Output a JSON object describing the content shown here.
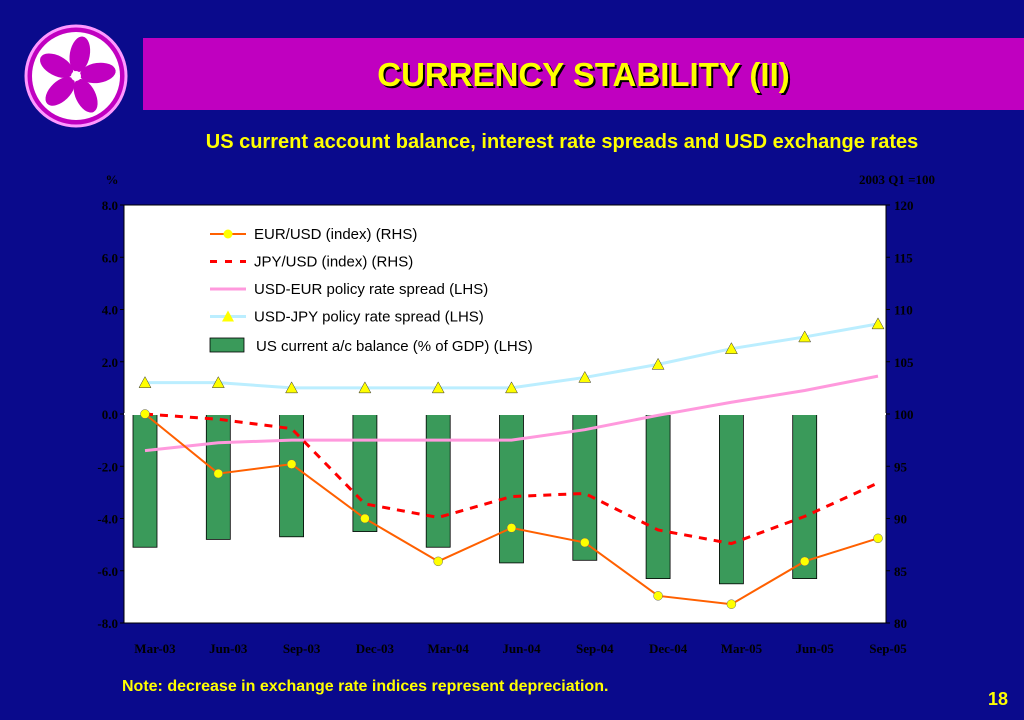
{
  "header": {
    "title": "CURRENCY STABILITY (II)",
    "subtitle": "US current account balance, interest rate spreads and USD exchange rates"
  },
  "footer": {
    "note": "Note: decrease in exchange rate indices represent depreciation.",
    "page_number": "18"
  },
  "colors": {
    "background": "#0a0a8c",
    "title_bar": "#c000c0",
    "title_text": "#ffff00",
    "plot_bg": "#ffffff",
    "eur_usd": "#ff6000",
    "eur_usd_marker": "#ffff00",
    "jpy_usd": "#ff0000",
    "usd_eur_spread": "#ff99dd",
    "usd_jpy_spread": "#bbeeff",
    "usd_jpy_marker": "#ffff00",
    "current_account": "#3a9a5a"
  },
  "logo": {
    "icon": "bauhinia-flower-icon"
  },
  "chart_data": {
    "type": "bar",
    "categories": [
      "Mar-03",
      "Jun-03",
      "Sep-03",
      "Dec-03",
      "Mar-04",
      "Jun-04",
      "Sep-04",
      "Dec-04",
      "Mar-05",
      "Jun-05",
      "Sep-05"
    ],
    "y_left": {
      "unit": "%",
      "ylim": [
        -8,
        8
      ],
      "ticks": [
        "8.0",
        "6.0",
        "4.0",
        "2.0",
        "0.0",
        "-2.0",
        "-4.0",
        "-6.0",
        "-8.0"
      ]
    },
    "y_right": {
      "unit": "2003 Q1 =100",
      "ylim": [
        80,
        120
      ],
      "ticks": [
        "120",
        "115",
        "110",
        "105",
        "100",
        "95",
        "90",
        "85",
        "80"
      ]
    },
    "legend_placement": "top-center",
    "series": [
      {
        "name": "EUR/USD (index) (RHS)",
        "type": "line",
        "axis": "right",
        "marker": "circle",
        "values": [
          100,
          94.3,
          95.2,
          90,
          85.9,
          89.1,
          87.7,
          82.6,
          81.8,
          85.9,
          88.1
        ]
      },
      {
        "name": "JPY/USD (index) (RHS)",
        "type": "dashed-line",
        "axis": "right",
        "values": [
          100,
          99.5,
          98.6,
          91.4,
          90.1,
          92.1,
          92.4,
          88.9,
          87.6,
          90.2,
          93.4
        ]
      },
      {
        "name": "USD-EUR policy rate spread (LHS)",
        "type": "line",
        "axis": "left",
        "values": [
          -1.4,
          -1.1,
          -1.0,
          -1.0,
          -1.0,
          -1.0,
          -0.6,
          -0.05,
          0.45,
          0.9,
          1.45
        ]
      },
      {
        "name": "USD-JPY policy rate spread (LHS)",
        "type": "line",
        "axis": "left",
        "marker": "triangle",
        "values": [
          1.2,
          1.2,
          1.0,
          1.0,
          1.0,
          1.0,
          1.4,
          1.9,
          2.5,
          2.95,
          3.45
        ]
      },
      {
        "name": "US current a/c balance (% of GDP) (LHS)",
        "type": "bar",
        "axis": "left",
        "values": [
          -5.1,
          -4.8,
          -4.7,
          -4.5,
          -5.1,
          -5.7,
          -5.6,
          -6.3,
          -6.5,
          -6.3,
          null
        ]
      }
    ]
  }
}
